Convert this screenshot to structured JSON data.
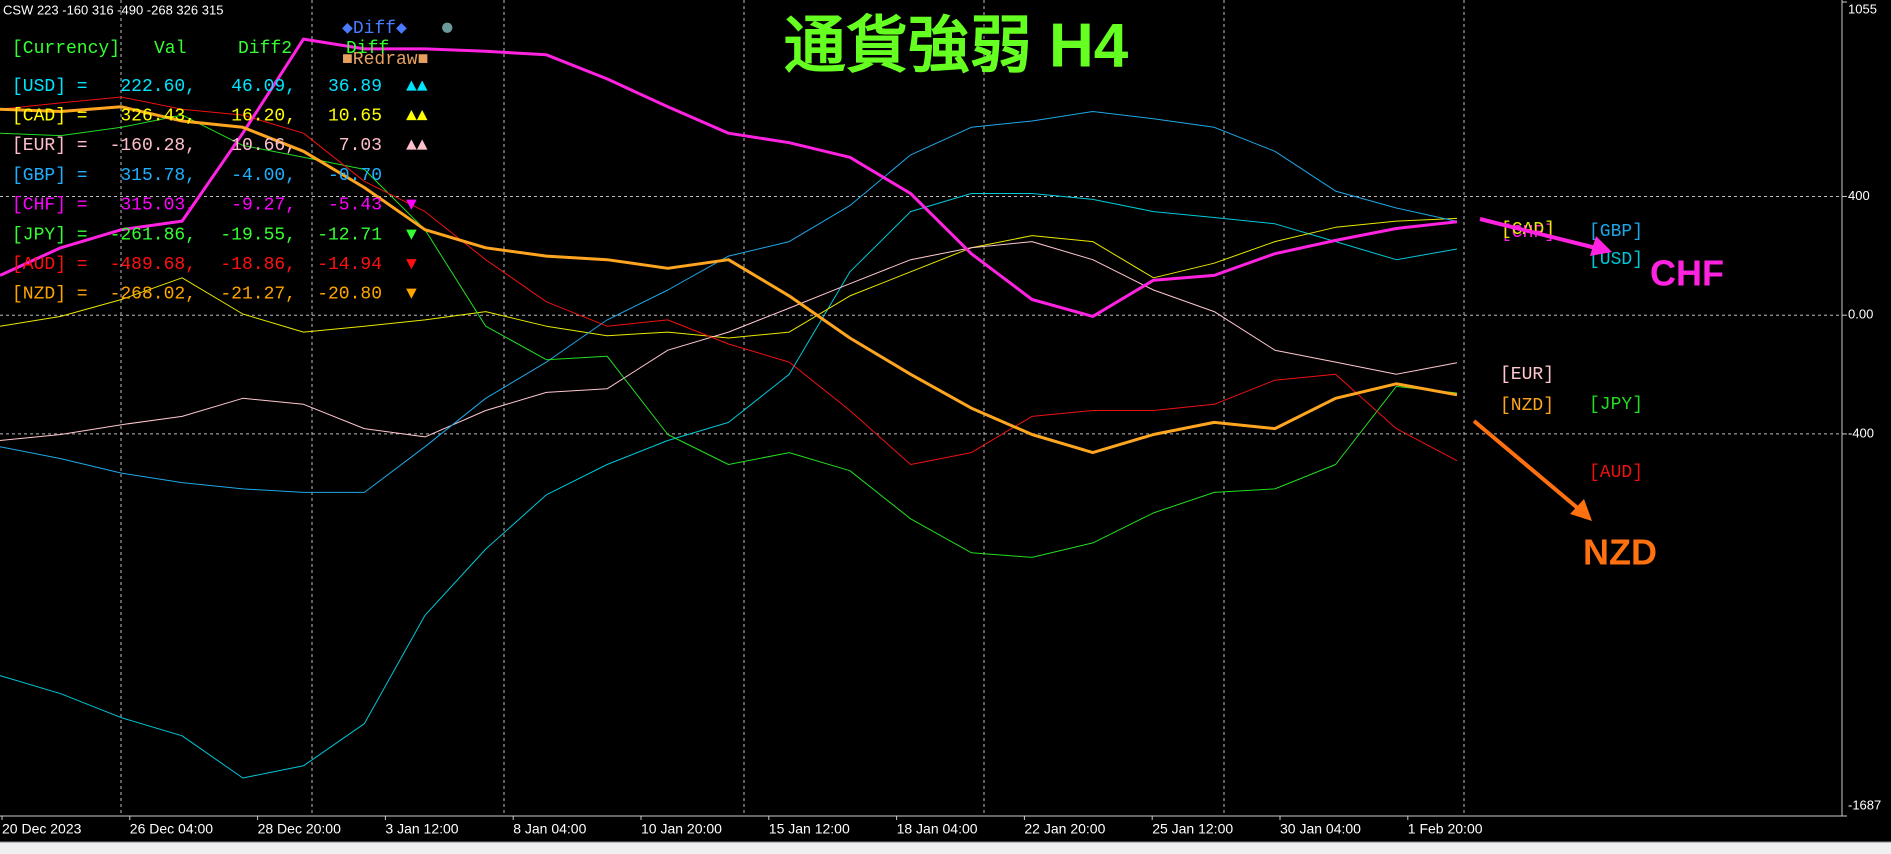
{
  "chart_data": {
    "type": "line",
    "title": "通貨強弱 H4",
    "header_text": "CSW 223 -160 316 -490 -268 326 315",
    "annotations": [
      "CHF",
      "NZD"
    ],
    "x_labels": [
      "20 Dec 2023",
      "26 Dec 04:00",
      "28 Dec 20:00",
      "3 Jan 12:00",
      "8 Jan 04:00",
      "10 Jan 20:00",
      "15 Jan 12:00",
      "18 Jan 04:00",
      "22 Jan 20:00",
      "25 Jan 12:00",
      "30 Jan 04:00",
      "1 Feb 20:00"
    ],
    "ylim": [
      -1687,
      1055
    ],
    "yticks": [
      1055,
      400,
      {
        "value": 0,
        "label": "0.00"
      },
      -400,
      -1687
    ],
    "grid": true,
    "series": [
      {
        "name": "[USD]",
        "color": "#00c8d8",
        "width": 1,
        "values": [
          -1214,
          -1275,
          -1356,
          -1417,
          -1559,
          -1518,
          -1376,
          -1011,
          -788,
          -605,
          -503,
          -422,
          -361,
          -199,
          146,
          349,
          410,
          410,
          390,
          349,
          329,
          308,
          248,
          187,
          223
        ]
      },
      {
        "name": "[CAD]",
        "color": "#e8e800",
        "width": 1,
        "values": [
          -37,
          -4,
          53,
          126,
          4,
          -57,
          -37,
          -16,
          12,
          -37,
          -69,
          -57,
          -77,
          -57,
          65,
          146,
          227,
          268,
          248,
          126,
          175,
          248,
          296,
          317,
          326
        ]
      },
      {
        "name": "[EUR]",
        "color": "#ffc8d0",
        "width": 1,
        "values": [
          -422,
          -402,
          -369,
          -341,
          -280,
          -300,
          -382,
          -410,
          -321,
          -260,
          -248,
          -118,
          -57,
          24,
          106,
          187,
          227,
          248,
          187,
          85,
          12,
          -118,
          -158,
          -199,
          -160
        ]
      },
      {
        "name": "[GBP]",
        "color": "#1ea8e8",
        "width": 1,
        "values": [
          -443,
          -483,
          -532,
          -564,
          -585,
          -597,
          -597,
          -443,
          -280,
          -158,
          -16,
          85,
          199,
          248,
          369,
          540,
          633,
          654,
          686,
          662,
          633,
          552,
          418,
          361,
          316
        ]
      },
      {
        "name": "[CHF]",
        "color": "#ff22e0",
        "width": 3,
        "values": [
          134,
          227,
          288,
          317,
          613,
          930,
          897,
          897,
          889,
          877,
          796,
          702,
          613,
          581,
          532,
          410,
          207,
          53,
          -4,
          118,
          134,
          207,
          252,
          292,
          315
        ]
      },
      {
        "name": "[JPY]",
        "color": "#22dd22",
        "width": 1,
        "values": [
          613,
          605,
          633,
          674,
          572,
          532,
          491,
          288,
          -37,
          -150,
          -138,
          -402,
          -503,
          -463,
          -524,
          -686,
          -800,
          -816,
          -767,
          -666,
          -597,
          -585,
          -503,
          -240,
          -262
        ]
      },
      {
        "name": "[AUD]",
        "color": "#ee1111",
        "width": 1,
        "values": [
          694,
          715,
          735,
          694,
          674,
          613,
          451,
          349,
          187,
          45,
          -37,
          -16,
          -97,
          -158,
          -321,
          -503,
          -463,
          -341,
          -321,
          -321,
          -300,
          -219,
          -199,
          -382,
          -490
        ]
      },
      {
        "name": "[NZD]",
        "color": "#ffa520",
        "width": 3,
        "values": [
          694,
          686,
          702,
          654,
          633,
          552,
          430,
          288,
          227,
          199,
          187,
          158,
          187,
          65,
          -77,
          -199,
          -313,
          -402,
          -463,
          -402,
          -361,
          -382,
          -280,
          -231,
          -268
        ]
      }
    ]
  },
  "table": {
    "legend_top": [
      "◆Diff◆",
      "●",
      "■Redraw■"
    ],
    "header": [
      "[Currency]",
      "Val",
      "Diff2",
      "Diff"
    ],
    "rows": [
      {
        "color": "#00e5ff",
        "cells": [
          "[USD] =",
          "222.60,",
          "46.09,",
          "36.89",
          "▲▲"
        ]
      },
      {
        "color": "#ffff00",
        "cells": [
          "[CAD] =",
          "326.43,",
          "16.20,",
          "10.65",
          "▲▲"
        ]
      },
      {
        "color": "#ffc0cb",
        "cells": [
          "[EUR] =",
          "-160.28,",
          "10.66,",
          "7.03",
          "▲▲"
        ]
      },
      {
        "color": "#1fb0ff",
        "cells": [
          "[GBP] =",
          "315.78,",
          "-4.00,",
          "-0.70"
        ]
      },
      {
        "color": "#ff00ff",
        "cells": [
          "[CHF] =",
          "315.03,",
          "-9.27,",
          "-5.43",
          "▼"
        ]
      },
      {
        "color": "#33ff33",
        "cells": [
          "[JPY] =",
          "-261.86,",
          "-19.55,",
          "-12.71",
          "▼"
        ]
      },
      {
        "color": "#ff1010",
        "cells": [
          "[AUD] =",
          "-489.68,",
          "-18.86,",
          "-14.94",
          "▼"
        ]
      },
      {
        "color": "#ffa500",
        "cells": [
          "[NZD] =",
          "-268.02,",
          "-21.27,",
          "-20.80",
          "▼"
        ]
      }
    ]
  }
}
